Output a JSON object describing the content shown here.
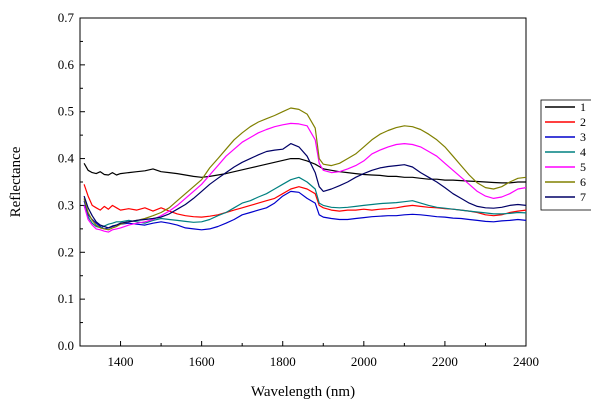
{
  "chart_data": {
    "type": "line",
    "title": "",
    "xlabel": "Wavelength (nm)",
    "ylabel": "Reflectance",
    "xlim": [
      1300,
      2400
    ],
    "ylim": [
      0.0,
      0.7
    ],
    "xticks": [
      1400,
      1600,
      1800,
      2000,
      2200,
      2400
    ],
    "xtick_labels": [
      "1400",
      "1600",
      "1800",
      "2000",
      "2200",
      "2400"
    ],
    "yticks": [
      0.0,
      0.1,
      0.2,
      0.3,
      0.4,
      0.5,
      0.6,
      0.7
    ],
    "ytick_labels": [
      "0.0",
      "0.1",
      "0.2",
      "0.3",
      "0.4",
      "0.5",
      "0.6",
      "0.7"
    ],
    "grid": false,
    "legend_position": "right",
    "x": [
      1310,
      1320,
      1330,
      1340,
      1350,
      1360,
      1370,
      1380,
      1390,
      1400,
      1420,
      1440,
      1460,
      1480,
      1500,
      1520,
      1540,
      1560,
      1580,
      1600,
      1620,
      1640,
      1660,
      1680,
      1700,
      1720,
      1740,
      1760,
      1780,
      1800,
      1820,
      1840,
      1860,
      1880,
      1890,
      1900,
      1920,
      1940,
      1960,
      1980,
      2000,
      2020,
      2040,
      2060,
      2080,
      2100,
      2120,
      2140,
      2160,
      2180,
      2200,
      2220,
      2240,
      2260,
      2280,
      2300,
      2320,
      2340,
      2360,
      2380,
      2400
    ],
    "series": [
      {
        "name": "1",
        "color": "#000000",
        "values": [
          0.39,
          0.375,
          0.37,
          0.368,
          0.372,
          0.366,
          0.365,
          0.37,
          0.365,
          0.368,
          0.37,
          0.372,
          0.374,
          0.378,
          0.372,
          0.37,
          0.368,
          0.365,
          0.362,
          0.36,
          0.362,
          0.365,
          0.368,
          0.372,
          0.376,
          0.38,
          0.384,
          0.388,
          0.392,
          0.396,
          0.4,
          0.4,
          0.395,
          0.388,
          0.383,
          0.378,
          0.375,
          0.372,
          0.37,
          0.368,
          0.366,
          0.365,
          0.364,
          0.362,
          0.362,
          0.36,
          0.36,
          0.358,
          0.356,
          0.356,
          0.354,
          0.354,
          0.353,
          0.352,
          0.351,
          0.35,
          0.349,
          0.348,
          0.348,
          0.35,
          0.35
        ]
      },
      {
        "name": "2",
        "color": "#ff0000",
        "values": [
          0.345,
          0.32,
          0.3,
          0.295,
          0.29,
          0.298,
          0.292,
          0.3,
          0.295,
          0.29,
          0.293,
          0.29,
          0.295,
          0.288,
          0.295,
          0.288,
          0.282,
          0.278,
          0.276,
          0.275,
          0.277,
          0.28,
          0.285,
          0.29,
          0.295,
          0.3,
          0.305,
          0.31,
          0.315,
          0.325,
          0.335,
          0.34,
          0.335,
          0.325,
          0.3,
          0.295,
          0.29,
          0.288,
          0.29,
          0.29,
          0.292,
          0.29,
          0.292,
          0.293,
          0.295,
          0.298,
          0.3,
          0.298,
          0.296,
          0.295,
          0.293,
          0.292,
          0.29,
          0.288,
          0.285,
          0.28,
          0.278,
          0.28,
          0.285,
          0.288,
          0.29
        ]
      },
      {
        "name": "3",
        "color": "#0000cc",
        "values": [
          0.31,
          0.28,
          0.27,
          0.262,
          0.255,
          0.25,
          0.252,
          0.255,
          0.258,
          0.26,
          0.262,
          0.26,
          0.258,
          0.262,
          0.265,
          0.262,
          0.258,
          0.252,
          0.25,
          0.248,
          0.25,
          0.255,
          0.262,
          0.27,
          0.28,
          0.285,
          0.29,
          0.295,
          0.305,
          0.32,
          0.33,
          0.328,
          0.315,
          0.305,
          0.28,
          0.275,
          0.272,
          0.27,
          0.27,
          0.272,
          0.274,
          0.276,
          0.277,
          0.278,
          0.278,
          0.28,
          0.281,
          0.28,
          0.278,
          0.276,
          0.275,
          0.273,
          0.272,
          0.27,
          0.268,
          0.266,
          0.265,
          0.267,
          0.268,
          0.27,
          0.268
        ]
      },
      {
        "name": "4",
        "color": "#008080",
        "values": [
          0.3,
          0.275,
          0.262,
          0.255,
          0.253,
          0.256,
          0.26,
          0.262,
          0.265,
          0.265,
          0.268,
          0.265,
          0.262,
          0.268,
          0.272,
          0.27,
          0.268,
          0.266,
          0.264,
          0.265,
          0.27,
          0.278,
          0.285,
          0.295,
          0.305,
          0.31,
          0.318,
          0.325,
          0.335,
          0.345,
          0.355,
          0.36,
          0.35,
          0.335,
          0.305,
          0.3,
          0.296,
          0.295,
          0.296,
          0.298,
          0.3,
          0.302,
          0.304,
          0.305,
          0.306,
          0.308,
          0.31,
          0.305,
          0.3,
          0.296,
          0.294,
          0.292,
          0.29,
          0.288,
          0.286,
          0.284,
          0.282,
          0.282,
          0.283,
          0.285,
          0.284
        ]
      },
      {
        "name": "5",
        "color": "#ff00ff",
        "values": [
          0.3,
          0.27,
          0.258,
          0.25,
          0.248,
          0.245,
          0.243,
          0.248,
          0.25,
          0.252,
          0.258,
          0.262,
          0.265,
          0.27,
          0.278,
          0.288,
          0.3,
          0.315,
          0.33,
          0.345,
          0.365,
          0.385,
          0.405,
          0.42,
          0.435,
          0.445,
          0.455,
          0.462,
          0.468,
          0.472,
          0.475,
          0.474,
          0.47,
          0.44,
          0.39,
          0.375,
          0.37,
          0.372,
          0.378,
          0.385,
          0.395,
          0.41,
          0.418,
          0.425,
          0.43,
          0.432,
          0.43,
          0.425,
          0.415,
          0.405,
          0.39,
          0.375,
          0.36,
          0.345,
          0.33,
          0.32,
          0.315,
          0.318,
          0.325,
          0.335,
          0.338
        ]
      },
      {
        "name": "6",
        "color": "#808000",
        "values": [
          0.315,
          0.285,
          0.268,
          0.258,
          0.252,
          0.25,
          0.248,
          0.252,
          0.255,
          0.26,
          0.265,
          0.268,
          0.272,
          0.278,
          0.285,
          0.295,
          0.31,
          0.325,
          0.34,
          0.355,
          0.38,
          0.4,
          0.42,
          0.44,
          0.455,
          0.468,
          0.478,
          0.485,
          0.492,
          0.5,
          0.508,
          0.505,
          0.495,
          0.465,
          0.4,
          0.388,
          0.385,
          0.39,
          0.4,
          0.41,
          0.425,
          0.44,
          0.452,
          0.46,
          0.466,
          0.47,
          0.468,
          0.462,
          0.452,
          0.44,
          0.425,
          0.405,
          0.385,
          0.365,
          0.348,
          0.338,
          0.335,
          0.34,
          0.35,
          0.358,
          0.36
        ]
      },
      {
        "name": "7",
        "color": "#000066",
        "values": [
          0.32,
          0.295,
          0.278,
          0.265,
          0.258,
          0.255,
          0.252,
          0.256,
          0.258,
          0.262,
          0.265,
          0.268,
          0.27,
          0.272,
          0.275,
          0.282,
          0.292,
          0.302,
          0.315,
          0.33,
          0.345,
          0.358,
          0.37,
          0.382,
          0.392,
          0.4,
          0.408,
          0.415,
          0.418,
          0.42,
          0.432,
          0.425,
          0.405,
          0.37,
          0.34,
          0.33,
          0.335,
          0.342,
          0.35,
          0.36,
          0.368,
          0.375,
          0.38,
          0.383,
          0.385,
          0.387,
          0.382,
          0.37,
          0.36,
          0.35,
          0.338,
          0.325,
          0.315,
          0.305,
          0.298,
          0.295,
          0.294,
          0.296,
          0.3,
          0.302,
          0.3
        ]
      }
    ]
  }
}
